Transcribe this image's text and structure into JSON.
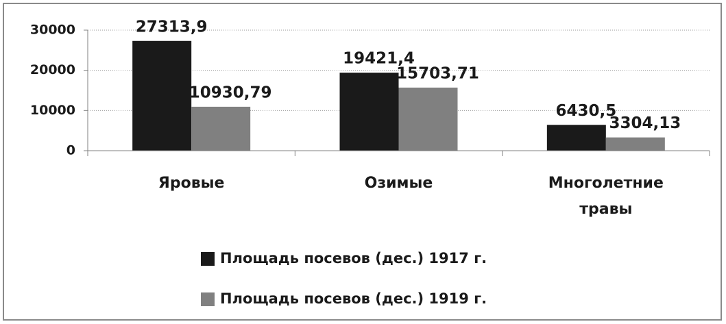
{
  "chart_data": {
    "type": "bar",
    "categories": [
      "Яровые",
      "Озимые",
      "Многолетние травы"
    ],
    "series": [
      {
        "name": "Площадь посевов (дес.) 1917 г.",
        "color": "#1a1a1a",
        "values": [
          27313.9,
          19421.4,
          6430.5
        ],
        "value_labels": [
          "27313,9",
          "19421,4",
          "6430,5"
        ]
      },
      {
        "name": "Площадь посевов (дес.) 1919 г.",
        "color": "#808080",
        "values": [
          10930.79,
          15703.71,
          3304.13
        ],
        "value_labels": [
          "10930,79",
          "15703,71",
          "3304,13"
        ]
      }
    ],
    "ylim": [
      0,
      30000
    ],
    "yticks": [
      0,
      10000,
      20000,
      30000
    ],
    "grid": true,
    "legend": "bottom"
  }
}
